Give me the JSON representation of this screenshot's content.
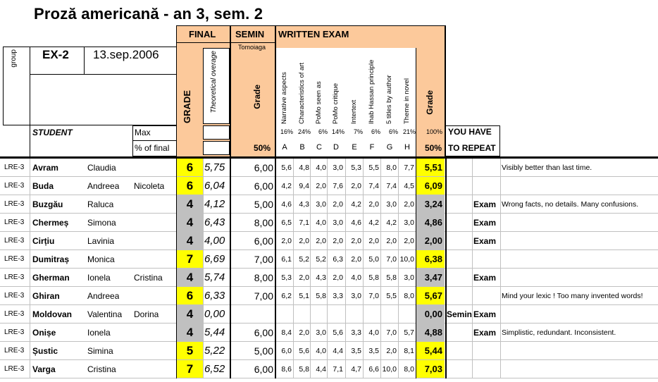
{
  "title": "Proză americană - an 3, sem. 2",
  "header": {
    "group_label": "group",
    "exam_code": "EX-2",
    "exam_date": "13.sep.2006",
    "final_label": "FINAL",
    "grade_label": "GRADE",
    "theoretical_label": "Theoretical overage",
    "semin_label": "SEMIN",
    "semin_teacher": "Tomoiaga",
    "semin_grade_label": "Grade",
    "written_label": "WRITTEN EXAM",
    "written_grade_label": "Grade",
    "student_label": "STUDENT",
    "max_label": "Max",
    "pct_final_label": "% of final",
    "semin_pct": "50%",
    "written_pct": "50%",
    "repeat_line1": "YOU HAVE",
    "repeat_line2": "TO REPEAT"
  },
  "criteria": [
    {
      "name": "Narrative aspects",
      "pct": "16%",
      "letter": "A"
    },
    {
      "name": "Characteristics of art",
      "pct": "24%",
      "letter": "B"
    },
    {
      "name": "PoMo seen as",
      "pct": "6%",
      "letter": "C"
    },
    {
      "name": "PoMo critique",
      "pct": "14%",
      "letter": "D"
    },
    {
      "name": "Intertext",
      "pct": "7%",
      "letter": "E"
    },
    {
      "name": "Ihab Hassan principle",
      "pct": "6%",
      "letter": "F"
    },
    {
      "name": "5 titles by author",
      "pct": "6%",
      "letter": "G"
    },
    {
      "name": "Theme in novel",
      "pct": "21%",
      "letter": "H"
    }
  ],
  "written_total_pct": "100%",
  "students": [
    {
      "group": "LRE-3",
      "last": "Avram",
      "first": "Claudia",
      "middle": "",
      "grade": "6",
      "theo": "5,75",
      "semin": "6,00",
      "scores": [
        "5,6",
        "4,8",
        "4,0",
        "3,0",
        "5,3",
        "5,5",
        "8,0",
        "7,7"
      ],
      "wgrade": "5,51",
      "rep1": "",
      "rep2": "",
      "comment": "Visibly better than last time."
    },
    {
      "group": "LRE-3",
      "last": "Buda",
      "first": "Andreea",
      "middle": "Nicoleta",
      "grade": "6",
      "theo": "6,04",
      "semin": "6,00",
      "scores": [
        "4,2",
        "9,4",
        "2,0",
        "7,6",
        "2,0",
        "7,4",
        "7,4",
        "4,5"
      ],
      "wgrade": "6,09",
      "rep1": "",
      "rep2": "",
      "comment": ""
    },
    {
      "group": "LRE-3",
      "last": "Buzgău",
      "first": "Raluca",
      "middle": "",
      "grade": "4",
      "theo": "4,12",
      "semin": "5,00",
      "scores": [
        "4,6",
        "4,3",
        "3,0",
        "2,0",
        "4,2",
        "2,0",
        "3,0",
        "2,0"
      ],
      "wgrade": "3,24",
      "rep1": "",
      "rep2": "Exam",
      "comment": "Wrong facts, no details. Many confusions."
    },
    {
      "group": "LRE-3",
      "last": "Chermeș",
      "first": "Simona",
      "middle": "",
      "grade": "4",
      "theo": "6,43",
      "semin": "8,00",
      "scores": [
        "6,5",
        "7,1",
        "4,0",
        "3,0",
        "4,6",
        "4,2",
        "4,2",
        "3,0"
      ],
      "wgrade": "4,86",
      "rep1": "",
      "rep2": "Exam",
      "comment": ""
    },
    {
      "group": "LRE-3",
      "last": "Cirțiu",
      "first": "Lavinia",
      "middle": "",
      "grade": "4",
      "theo": "4,00",
      "semin": "6,00",
      "scores": [
        "2,0",
        "2,0",
        "2,0",
        "2,0",
        "2,0",
        "2,0",
        "2,0",
        "2,0"
      ],
      "wgrade": "2,00",
      "rep1": "",
      "rep2": "Exam",
      "comment": ""
    },
    {
      "group": "LRE-3",
      "last": "Dumitraș",
      "first": "Monica",
      "middle": "",
      "grade": "7",
      "theo": "6,69",
      "semin": "7,00",
      "scores": [
        "6,1",
        "5,2",
        "5,2",
        "6,3",
        "2,0",
        "5,0",
        "7,0",
        "10,0"
      ],
      "wgrade": "6,38",
      "rep1": "",
      "rep2": "",
      "comment": ""
    },
    {
      "group": "LRE-3",
      "last": "Gherman",
      "first": "Ionela",
      "middle": "Cristina",
      "grade": "4",
      "theo": "5,74",
      "semin": "8,00",
      "scores": [
        "5,3",
        "2,0",
        "4,3",
        "2,0",
        "4,0",
        "5,8",
        "5,8",
        "3,0"
      ],
      "wgrade": "3,47",
      "rep1": "",
      "rep2": "Exam",
      "comment": ""
    },
    {
      "group": "LRE-3",
      "last": "Ghiran",
      "first": "Andreea",
      "middle": "",
      "grade": "6",
      "theo": "6,33",
      "semin": "7,00",
      "scores": [
        "6,2",
        "5,1",
        "5,8",
        "3,3",
        "3,0",
        "7,0",
        "5,5",
        "8,0"
      ],
      "wgrade": "5,67",
      "rep1": "",
      "rep2": "",
      "comment": "Mind your lexic ! Too many invented words!"
    },
    {
      "group": "LRE-3",
      "last": "Moldovan",
      "first": "Valentina",
      "middle": "Dorina",
      "grade": "4",
      "theo": "0,00",
      "semin": "",
      "scores": [
        "",
        "",
        "",
        "",
        "",
        "",
        "",
        ""
      ],
      "wgrade": "0,00",
      "rep1": "Semin",
      "rep2": "Exam",
      "comment": ""
    },
    {
      "group": "LRE-3",
      "last": "Onișe",
      "first": "Ionela",
      "middle": "",
      "grade": "4",
      "theo": "5,44",
      "semin": "6,00",
      "scores": [
        "8,4",
        "2,0",
        "3,0",
        "5,6",
        "3,3",
        "4,0",
        "7,0",
        "5,7"
      ],
      "wgrade": "4,88",
      "rep1": "",
      "rep2": "Exam",
      "comment": "Simplistic, redundant. Inconsistent."
    },
    {
      "group": "LRE-3",
      "last": "Șustic",
      "first": "Simina",
      "middle": "",
      "grade": "5",
      "theo": "5,22",
      "semin": "5,00",
      "scores": [
        "6,0",
        "5,6",
        "4,0",
        "4,4",
        "3,5",
        "3,5",
        "2,0",
        "8,1"
      ],
      "wgrade": "5,44",
      "rep1": "",
      "rep2": "",
      "comment": ""
    },
    {
      "group": "LRE-3",
      "last": "Varga",
      "first": "Cristina",
      "middle": "",
      "grade": "7",
      "theo": "6,52",
      "semin": "6,00",
      "scores": [
        "8,6",
        "5,8",
        "4,4",
        "7,1",
        "4,7",
        "6,6",
        "10,0",
        "8,0"
      ],
      "wgrade": "7,03",
      "rep1": "",
      "rep2": "",
      "comment": ""
    }
  ],
  "colors": {
    "orange": "#fcc99b",
    "yellow": "#ffff00",
    "gray": "#c0c0c0",
    "grid": "#c0c0c0"
  }
}
